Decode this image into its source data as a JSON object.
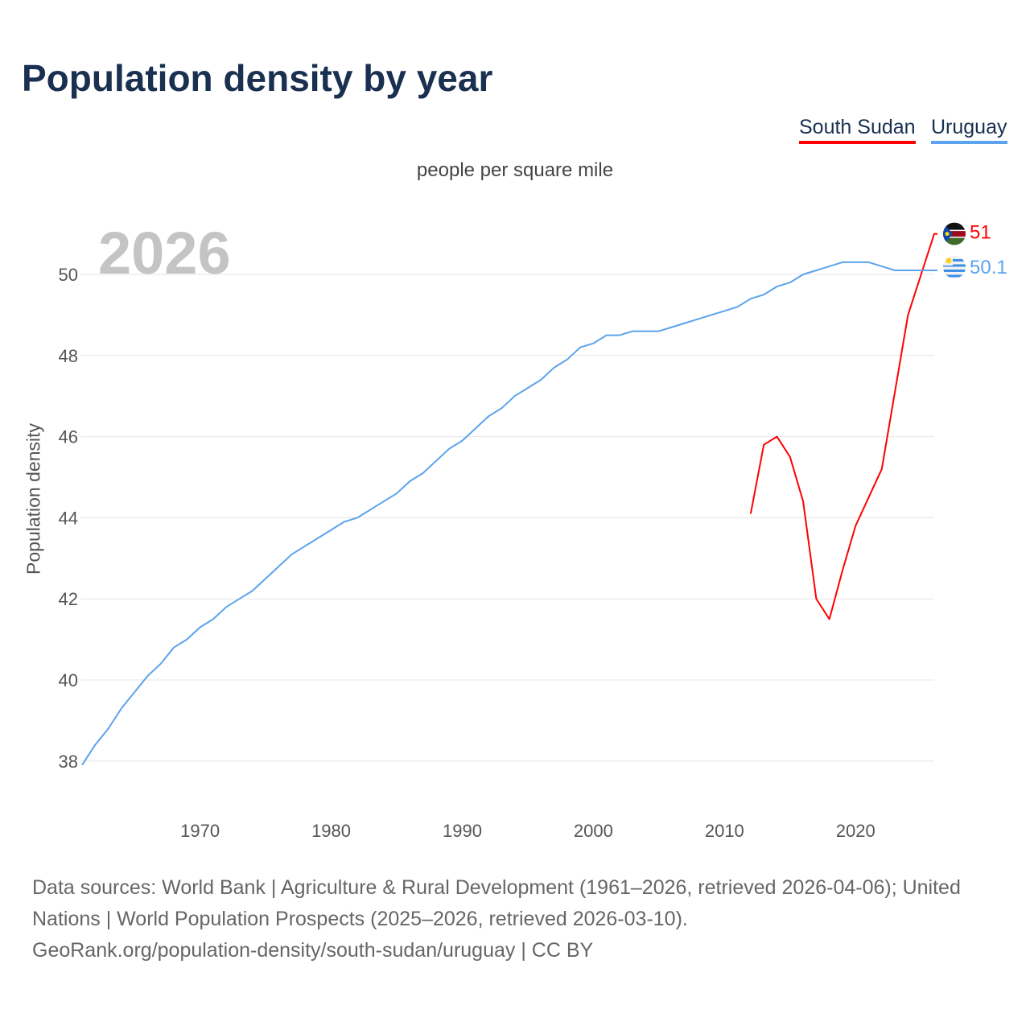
{
  "title": "Population density by year",
  "subtitle": "people per square mile",
  "year_watermark": "2026",
  "source_lines": [
    "Data sources: World Bank | Agriculture & Rural Development (1961–2026, retrieved 2026-04-06); United Nations | World Population Prospects (2025–2026, retrieved 2026-03-10).",
    "GeoRank.org/population-density/south-sudan/uruguay | CC BY"
  ],
  "chart_data": {
    "type": "line",
    "title": "Population density by year",
    "xlabel": "",
    "ylabel": "Population density",
    "xlim": [
      1961,
      2026
    ],
    "ylim": [
      37,
      51.2
    ],
    "grid": true,
    "legend_position": "top-right",
    "x_ticks": [
      1970,
      1980,
      1990,
      2000,
      2010,
      2020
    ],
    "y_ticks": [
      38,
      40,
      42,
      44,
      46,
      48,
      50
    ],
    "series": [
      {
        "name": "South Sudan",
        "color": "#ff0000",
        "start_year": 2012,
        "end_label": "51",
        "flag_icon": "south-sudan-flag-icon",
        "values": [
          44.1,
          45.8,
          46.0,
          45.5,
          44.4,
          42.0,
          41.5,
          42.7,
          43.8,
          44.5,
          45.2,
          47.1,
          49.0,
          50.0,
          51.0
        ]
      },
      {
        "name": "Uruguay",
        "color": "#5ba3ec",
        "start_year": 1961,
        "end_label": "50.1",
        "flag_icon": "uruguay-flag-icon",
        "values": [
          37.9,
          38.4,
          38.8,
          39.3,
          39.7,
          40.1,
          40.4,
          40.8,
          41.0,
          41.3,
          41.5,
          41.8,
          42.0,
          42.2,
          42.5,
          42.8,
          43.1,
          43.3,
          43.5,
          43.7,
          43.9,
          44.0,
          44.2,
          44.4,
          44.6,
          44.9,
          45.1,
          45.4,
          45.7,
          45.9,
          46.2,
          46.5,
          46.7,
          47.0,
          47.2,
          47.4,
          47.7,
          47.9,
          48.2,
          48.3,
          48.5,
          48.5,
          48.6,
          48.6,
          48.6,
          48.7,
          48.8,
          48.9,
          49.0,
          49.1,
          49.2,
          49.4,
          49.5,
          49.7,
          49.8,
          50.0,
          50.1,
          50.2,
          50.3,
          50.3,
          50.3,
          50.2,
          50.1,
          50.1,
          50.1,
          50.1
        ]
      }
    ]
  }
}
